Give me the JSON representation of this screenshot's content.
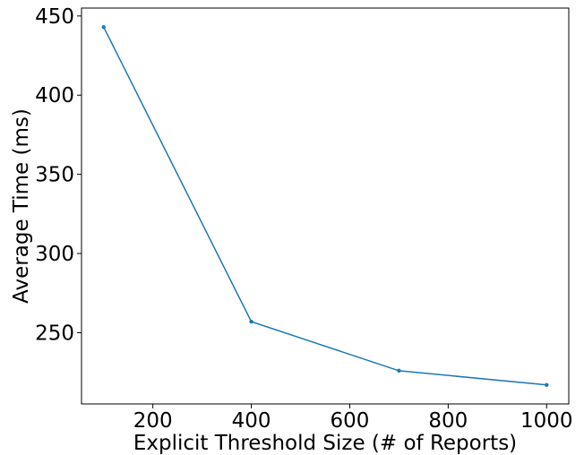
{
  "chart_data": {
    "type": "line",
    "title": "",
    "xlabel": "Explicit Threshold Size (# of Reports)",
    "ylabel": "Average Time (ms)",
    "xlim": [
      55,
      1045
    ],
    "ylim": [
      205,
      455
    ],
    "xticks": [
      200,
      400,
      600,
      800,
      1000
    ],
    "yticks": [
      250,
      300,
      350,
      400,
      450
    ],
    "grid": false,
    "legend": "none",
    "series": [
      {
        "x": [
          100,
          400,
          700,
          1000
        ],
        "y": [
          443,
          257,
          226,
          217
        ],
        "color": "#1f77b4",
        "marker": "point"
      }
    ]
  }
}
